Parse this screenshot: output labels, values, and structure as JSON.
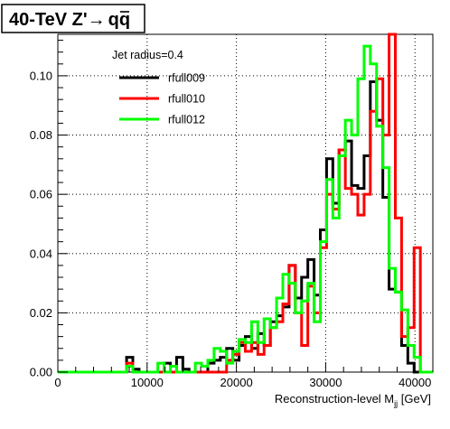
{
  "chart_data": {
    "type": "line",
    "title": "40-TeV Z'→ qq̄",
    "title_parts": {
      "prefix": "40-TeV Z'",
      "arrow": "→",
      "q": "q",
      "qbar": "q"
    },
    "xlabel": "Reconstruction-level M",
    "xlabel_sub": "jj",
    "xlabel_unit": " [GeV]",
    "ylabel": "",
    "xlim": [
      0,
      42000
    ],
    "ylim": [
      0,
      0.114
    ],
    "bin_width": 700,
    "x_ticks": [
      0,
      10000,
      20000,
      30000,
      40000
    ],
    "x_tick_labels": [
      "0",
      "10000",
      "20000",
      "30000",
      "40000"
    ],
    "y_ticks": [
      0,
      0.02,
      0.04,
      0.06,
      0.08,
      0.1
    ],
    "y_tick_labels": [
      "0.00",
      "0.02",
      "0.04",
      "0.06",
      "0.08",
      "0.10"
    ],
    "legend": {
      "header": "Jet radius=0.4",
      "position": "top-left"
    },
    "series": [
      {
        "name": "rfull009",
        "color": "#000000",
        "points": [
          [
            7700,
            0
          ],
          [
            7700,
            0.005
          ],
          [
            8400,
            0.005
          ],
          [
            8400,
            0.001
          ],
          [
            9100,
            0.001
          ],
          [
            9100,
            0
          ],
          [
            11900,
            0
          ],
          [
            11900,
            0.003
          ],
          [
            12600,
            0.003
          ],
          [
            12600,
            0
          ],
          [
            13300,
            0
          ],
          [
            13300,
            0.005
          ],
          [
            14000,
            0.005
          ],
          [
            14000,
            0.001
          ],
          [
            14700,
            0.001
          ],
          [
            14700,
            0
          ],
          [
            16800,
            0
          ],
          [
            16800,
            0.003
          ],
          [
            17500,
            0.003
          ],
          [
            17500,
            0.004
          ],
          [
            18200,
            0.004
          ],
          [
            18200,
            0.005
          ],
          [
            18900,
            0.005
          ],
          [
            18900,
            0.008
          ],
          [
            19600,
            0.008
          ],
          [
            19600,
            0.004
          ],
          [
            20300,
            0.004
          ],
          [
            20300,
            0.009
          ],
          [
            21000,
            0.009
          ],
          [
            21000,
            0.012
          ],
          [
            21700,
            0.012
          ],
          [
            21700,
            0.008
          ],
          [
            22400,
            0.008
          ],
          [
            22400,
            0.013
          ],
          [
            23100,
            0.013
          ],
          [
            23100,
            0.009
          ],
          [
            23800,
            0.009
          ],
          [
            23800,
            0.017
          ],
          [
            24500,
            0.017
          ],
          [
            24500,
            0.019
          ],
          [
            25200,
            0.019
          ],
          [
            25200,
            0.022
          ],
          [
            25900,
            0.022
          ],
          [
            25900,
            0.036
          ],
          [
            26600,
            0.036
          ],
          [
            26600,
            0.025
          ],
          [
            27300,
            0.025
          ],
          [
            27300,
            0.032
          ],
          [
            28000,
            0.032
          ],
          [
            28000,
            0.038
          ],
          [
            28700,
            0.038
          ],
          [
            28700,
            0.026
          ],
          [
            29400,
            0.026
          ],
          [
            29400,
            0.048
          ],
          [
            30100,
            0.048
          ],
          [
            30100,
            0.072
          ],
          [
            30800,
            0.072
          ],
          [
            30800,
            0.057
          ],
          [
            31500,
            0.057
          ],
          [
            31500,
            0.075
          ],
          [
            32200,
            0.075
          ],
          [
            32200,
            0.078
          ],
          [
            32900,
            0.078
          ],
          [
            32900,
            0.063
          ],
          [
            33600,
            0.063
          ],
          [
            33600,
            0.062
          ],
          [
            34300,
            0.062
          ],
          [
            34300,
            0.073
          ],
          [
            35000,
            0.073
          ],
          [
            35000,
            0.098
          ],
          [
            35700,
            0.098
          ],
          [
            35700,
            0.085
          ],
          [
            36400,
            0.085
          ],
          [
            36400,
            0.059
          ],
          [
            37100,
            0.059
          ],
          [
            37100,
            0.028
          ],
          [
            37800,
            0.028
          ],
          [
            37800,
            0.027
          ],
          [
            38500,
            0.027
          ],
          [
            38500,
            0.009
          ],
          [
            39200,
            0.009
          ],
          [
            39200,
            0.003
          ],
          [
            39900,
            0.003
          ],
          [
            39900,
            0
          ]
        ]
      },
      {
        "name": "rfull010",
        "color": "#ff0000",
        "points": [
          [
            7700,
            0
          ],
          [
            7700,
            0.003
          ],
          [
            8400,
            0.003
          ],
          [
            8400,
            0
          ],
          [
            18900,
            0
          ],
          [
            18900,
            0.004
          ],
          [
            19600,
            0.004
          ],
          [
            19600,
            0.006
          ],
          [
            20300,
            0.006
          ],
          [
            20300,
            0.01
          ],
          [
            21000,
            0.01
          ],
          [
            21000,
            0.007
          ],
          [
            21700,
            0.007
          ],
          [
            21700,
            0.01
          ],
          [
            22400,
            0.01
          ],
          [
            22400,
            0.006
          ],
          [
            23100,
            0.006
          ],
          [
            23100,
            0.009
          ],
          [
            23800,
            0.009
          ],
          [
            23800,
            0.015
          ],
          [
            24500,
            0.015
          ],
          [
            24500,
            0.017
          ],
          [
            25200,
            0.017
          ],
          [
            25200,
            0.023
          ],
          [
            25900,
            0.023
          ],
          [
            25900,
            0.036
          ],
          [
            26600,
            0.036
          ],
          [
            26600,
            0.02
          ],
          [
            27300,
            0.02
          ],
          [
            27300,
            0.009
          ],
          [
            28000,
            0.009
          ],
          [
            28000,
            0.029
          ],
          [
            28700,
            0.029
          ],
          [
            28700,
            0.02
          ],
          [
            29400,
            0.02
          ],
          [
            29400,
            0.042
          ],
          [
            30100,
            0.042
          ],
          [
            30100,
            0.06
          ],
          [
            30800,
            0.06
          ],
          [
            30800,
            0.055
          ],
          [
            31500,
            0.055
          ],
          [
            31500,
            0.075
          ],
          [
            32200,
            0.075
          ],
          [
            32200,
            0.062
          ],
          [
            32900,
            0.062
          ],
          [
            32900,
            0.06
          ],
          [
            33600,
            0.06
          ],
          [
            33600,
            0.053
          ],
          [
            34300,
            0.053
          ],
          [
            34300,
            0.06
          ],
          [
            35000,
            0.06
          ],
          [
            35000,
            0.088
          ],
          [
            35700,
            0.088
          ],
          [
            35700,
            0.099
          ],
          [
            36400,
            0.099
          ],
          [
            36400,
            0.08
          ],
          [
            37100,
            0.08
          ],
          [
            37100,
            0.114
          ],
          [
            37800,
            0.114
          ],
          [
            37800,
            0.052
          ],
          [
            38500,
            0.052
          ],
          [
            38500,
            0.012
          ],
          [
            39200,
            0.012
          ],
          [
            39200,
            0.015
          ],
          [
            39900,
            0.015
          ],
          [
            39900,
            0.042
          ],
          [
            40600,
            0.042
          ],
          [
            40600,
            0
          ]
        ]
      },
      {
        "name": "rfull012",
        "color": "#00ff00",
        "points": [
          [
            7700,
            0
          ],
          [
            7700,
            0.002
          ],
          [
            8400,
            0.002
          ],
          [
            8400,
            0
          ],
          [
            11200,
            0
          ],
          [
            11200,
            0.003
          ],
          [
            11900,
            0.003
          ],
          [
            11900,
            0
          ],
          [
            12600,
            0
          ],
          [
            12600,
            0.002
          ],
          [
            13300,
            0.002
          ],
          [
            13300,
            0
          ],
          [
            15400,
            0
          ],
          [
            15400,
            0.003
          ],
          [
            16100,
            0.003
          ],
          [
            16100,
            0.002
          ],
          [
            16800,
            0.002
          ],
          [
            16800,
            0.004
          ],
          [
            17500,
            0.004
          ],
          [
            17500,
            0.008
          ],
          [
            18200,
            0.008
          ],
          [
            18200,
            0.007
          ],
          [
            18900,
            0.007
          ],
          [
            18900,
            0.003
          ],
          [
            19600,
            0.003
          ],
          [
            19600,
            0.007
          ],
          [
            20300,
            0.007
          ],
          [
            20300,
            0.011
          ],
          [
            21000,
            0.011
          ],
          [
            21000,
            0.01
          ],
          [
            21700,
            0.01
          ],
          [
            21700,
            0.017
          ],
          [
            22400,
            0.017
          ],
          [
            22400,
            0.01
          ],
          [
            23100,
            0.01
          ],
          [
            23100,
            0.018
          ],
          [
            23800,
            0.018
          ],
          [
            23800,
            0.015
          ],
          [
            24500,
            0.015
          ],
          [
            24500,
            0.025
          ],
          [
            25200,
            0.025
          ],
          [
            25200,
            0.033
          ],
          [
            25900,
            0.033
          ],
          [
            25900,
            0.03
          ],
          [
            26600,
            0.03
          ],
          [
            26600,
            0.02
          ],
          [
            27300,
            0.02
          ],
          [
            27300,
            0.024
          ],
          [
            28000,
            0.024
          ],
          [
            28000,
            0.03
          ],
          [
            28700,
            0.03
          ],
          [
            28700,
            0.017
          ],
          [
            29400,
            0.017
          ],
          [
            29400,
            0.044
          ],
          [
            30100,
            0.044
          ],
          [
            30100,
            0.065
          ],
          [
            30800,
            0.065
          ],
          [
            30800,
            0.052
          ],
          [
            31500,
            0.052
          ],
          [
            31500,
            0.073
          ],
          [
            32200,
            0.073
          ],
          [
            32200,
            0.085
          ],
          [
            32900,
            0.085
          ],
          [
            32900,
            0.08
          ],
          [
            33600,
            0.08
          ],
          [
            33600,
            0.099
          ],
          [
            34300,
            0.099
          ],
          [
            34300,
            0.11
          ],
          [
            35000,
            0.11
          ],
          [
            35000,
            0.104
          ],
          [
            35700,
            0.104
          ],
          [
            35700,
            0.083
          ],
          [
            36400,
            0.083
          ],
          [
            36400,
            0.069
          ],
          [
            37100,
            0.069
          ],
          [
            37100,
            0.035
          ],
          [
            37800,
            0.035
          ],
          [
            37800,
            0.027
          ],
          [
            38500,
            0.027
          ],
          [
            38500,
            0.021
          ],
          [
            39200,
            0.021
          ],
          [
            39200,
            0.009
          ],
          [
            39900,
            0.009
          ],
          [
            39900,
            0.005
          ],
          [
            40600,
            0.005
          ],
          [
            40600,
            0
          ]
        ]
      }
    ]
  }
}
